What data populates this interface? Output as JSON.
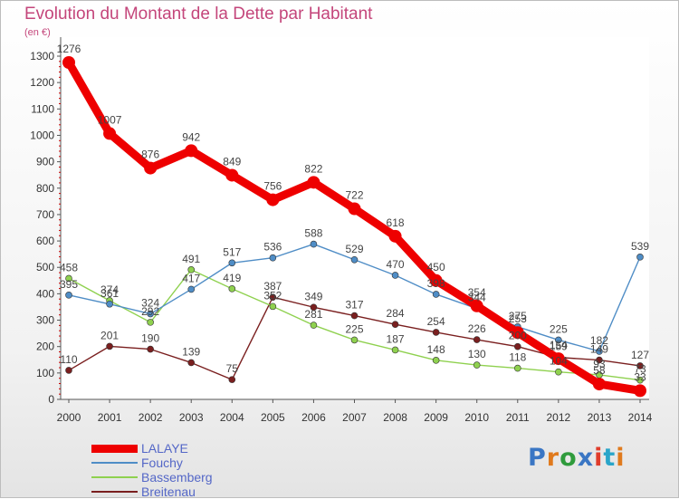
{
  "header": {
    "title": "Evolution du Montant de la Dette par Habitant",
    "unit": "(en €)"
  },
  "logo": {
    "text": "Proxiti",
    "colors": [
      "#3a76c4",
      "#e07a1d",
      "#2f9b3c",
      "#3a76c4",
      "#e03c2b",
      "#2aa5c9",
      "#e07a1d"
    ]
  },
  "chart_data": {
    "type": "line",
    "title": "Evolution du Montant de la Dette par Habitant",
    "ylabel": "(en €)",
    "xlabel": "",
    "x": [
      2000,
      2001,
      2002,
      2003,
      2004,
      2005,
      2006,
      2007,
      2008,
      2009,
      2010,
      2011,
      2012,
      2013,
      2014
    ],
    "ylim": [
      0,
      1300
    ],
    "yticks": [
      0,
      100,
      200,
      300,
      400,
      500,
      600,
      700,
      800,
      900,
      1000,
      1100,
      1200,
      1300
    ],
    "grid": false,
    "legend_position": "bottom-left",
    "series": [
      {
        "name": "LALAYE",
        "color": "#ee0000",
        "values": [
          1276,
          1007,
          876,
          942,
          849,
          756,
          822,
          722,
          618,
          450,
          354,
          253,
          154,
          58,
          33
        ]
      },
      {
        "name": "Fouchy",
        "color": "#4f8dc6",
        "values": [
          395,
          361,
          324,
          417,
          517,
          536,
          588,
          529,
          470,
          398,
          344,
          275,
          225,
          182,
          539
        ]
      },
      {
        "name": "Bassemberg",
        "color": "#8fd14f",
        "values": [
          458,
          374,
          292,
          491,
          419,
          352,
          281,
          225,
          187,
          148,
          130,
          118,
          104,
          93,
          73
        ]
      },
      {
        "name": "Breitenau",
        "color": "#7a1f1f",
        "values": [
          110,
          201,
          190,
          139,
          75,
          387,
          349,
          317,
          284,
          254,
          226,
          200,
          159,
          149,
          127
        ]
      }
    ],
    "value_labels": [
      [
        "1276",
        "1007",
        "876",
        "942",
        "849",
        "756",
        "822",
        "722",
        "618",
        "450",
        "354",
        "253",
        "154",
        "58",
        "33"
      ],
      [
        "395",
        "361",
        "324",
        "417",
        "517",
        "536",
        "588",
        "529",
        "470",
        "398",
        "344",
        "275",
        "225",
        "182",
        "539"
      ],
      [
        "458",
        "374",
        "292",
        "491",
        "419",
        "352",
        "281",
        "225",
        "187",
        "148",
        "130",
        "118",
        "104",
        "93",
        "73"
      ],
      [
        "110",
        "201",
        "190",
        "139",
        "75",
        "387",
        "349",
        "317",
        "284",
        "254",
        "226",
        "200",
        "159",
        "149",
        "127"
      ]
    ]
  }
}
